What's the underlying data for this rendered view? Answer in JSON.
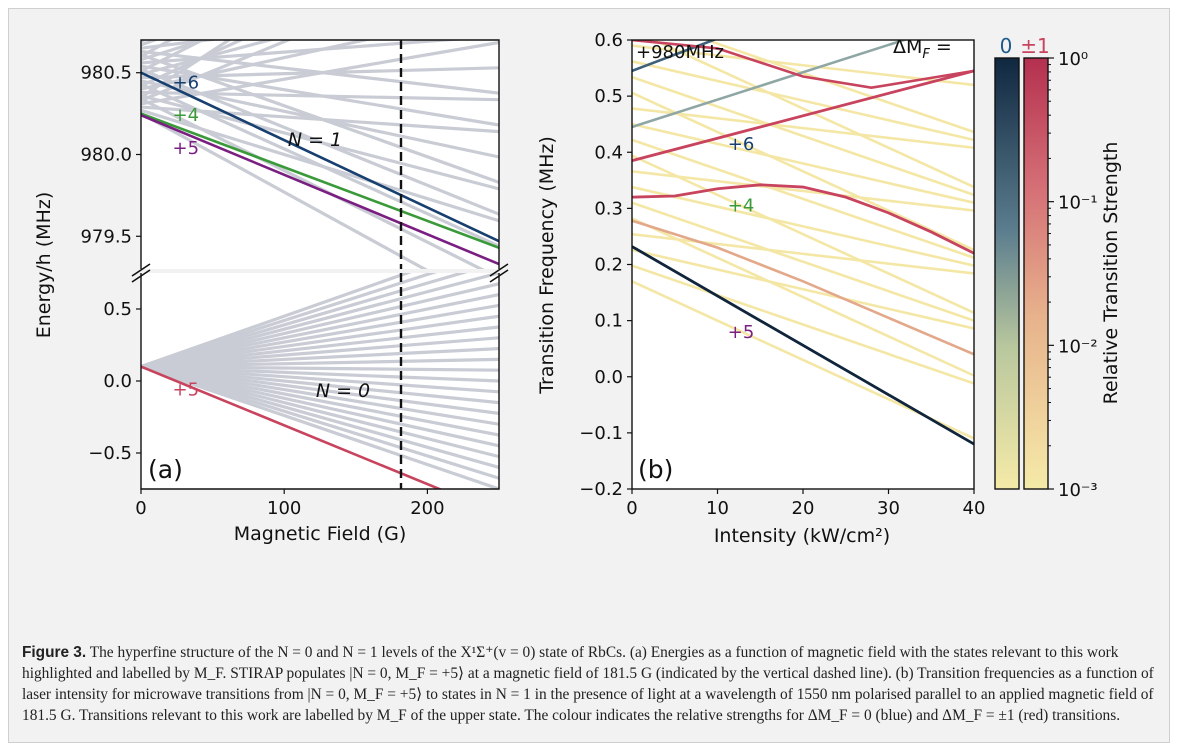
{
  "figure": {
    "caption": {
      "label": "Figure 3.",
      "text": " The hyperfine structure of the N = 0 and N = 1 levels of the X¹Σ⁺(v = 0) state of RbCs. (a) Energies as a function of magnetic field with the states relevant to this work highlighted and labelled by M_F. STIRAP populates |N = 0, M_F = +5⟩ at a magnetic field of 181.5 G (indicated by the vertical dashed line). (b) Transition frequencies as a function of laser intensity for microwave transitions from |N = 0, M_F = +5⟩ to states in N = 1 in the presence of light at a wavelength of 1550 nm polarised parallel to an applied magnetic field of 181.5 G. Transitions relevant to this work are labelled by M_F of the upper state. The colour indicates the relative strengths for ΔM_F = 0 (blue) and ΔM_F = ±1 (red) transitions."
    }
  },
  "colors": {
    "blue": "#173f6f",
    "green": "#3a9a3a",
    "purple": "#7a1f82",
    "red": "#c8445e",
    "grey": "#c9ccd4",
    "yellow": "#f4e7a6",
    "navy": "#10253c"
  },
  "chart_data": [
    {
      "type": "line",
      "panel_label": "(a)",
      "xlabel": "Magnetic Field (G)",
      "ylabel": "Energy/h (MHz)",
      "xlim": [
        0,
        250
      ],
      "x_ticks": [
        "0",
        "100",
        "200"
      ],
      "broken_axis": true,
      "upper": {
        "ylim": [
          979.3,
          980.7
        ],
        "y_ticks": [
          "979.5",
          "980.0",
          "980.5"
        ],
        "region_label": "N = 1"
      },
      "lower": {
        "ylim": [
          -0.75,
          0.75
        ],
        "y_ticks": [
          "−0.5",
          "0.0",
          "0.5"
        ],
        "region_label": "N = 0"
      },
      "marker_line": {
        "x": 181.5,
        "style": "dashed"
      },
      "series": [
        {
          "name": "+6",
          "panel": "upper",
          "x": [
            0,
            250
          ],
          "y": [
            980.5,
            979.47
          ]
        },
        {
          "name": "+4",
          "panel": "upper",
          "x": [
            0,
            250
          ],
          "y": [
            980.25,
            979.43
          ]
        },
        {
          "name": "+5",
          "panel": "upper",
          "x": [
            0,
            250
          ],
          "y": [
            980.24,
            979.33
          ]
        },
        {
          "name": "+5",
          "panel": "lower",
          "x": [
            0,
            250
          ],
          "y": [
            0.1,
            -0.92
          ]
        }
      ],
      "labels": [
        {
          "text": "+6",
          "x": 22,
          "y": 980.44,
          "panel": "upper"
        },
        {
          "text": "+4",
          "x": 22,
          "y": 980.24,
          "panel": "upper"
        },
        {
          "text": "+5",
          "x": 22,
          "y": 980.04,
          "panel": "upper"
        },
        {
          "text": "+5",
          "x": 22,
          "y": -0.06,
          "panel": "lower"
        }
      ]
    },
    {
      "type": "line",
      "panel_label": "(b)",
      "xlabel": "Intensity (kW/cm²)",
      "ylabel": "Transition Frequency (MHz)",
      "offset_label": "+980MHz",
      "xlim": [
        0,
        40
      ],
      "ylim": [
        -0.2,
        0.6
      ],
      "x_ticks": [
        "0",
        "10",
        "20",
        "30",
        "40"
      ],
      "y_ticks": [
        "−0.2",
        "−0.1",
        "0.0",
        "0.1",
        "0.2",
        "0.3",
        "0.4",
        "0.5",
        "0.6"
      ],
      "series": [
        {
          "name": "+6",
          "x": [
            0,
            40
          ],
          "y": [
            0.385,
            0.545
          ]
        },
        {
          "name": "+4",
          "x": [
            0,
            5,
            10,
            15,
            20,
            25,
            30,
            35,
            40
          ],
          "y": [
            0.32,
            0.322,
            0.335,
            0.342,
            0.338,
            0.32,
            0.292,
            0.258,
            0.22
          ]
        },
        {
          "name": "+5",
          "x": [
            0,
            40
          ],
          "y": [
            0.232,
            -0.12
          ]
        }
      ],
      "labels": [
        {
          "text": "+6",
          "x": 11.2,
          "y": 0.415
        },
        {
          "text": "+4",
          "x": 11.2,
          "y": 0.305
        },
        {
          "text": "+5",
          "x": 11.2,
          "y": 0.08
        }
      ],
      "colorbar": {
        "legend_title": "ΔM_F =",
        "legend_items": [
          "0",
          "±1"
        ],
        "label": "Relative Transition Strength",
        "ticks": [
          "10⁰",
          "10⁻¹",
          "10⁻²",
          "10⁻³"
        ],
        "scale": "log",
        "range": [
          0.001,
          1
        ]
      }
    }
  ]
}
